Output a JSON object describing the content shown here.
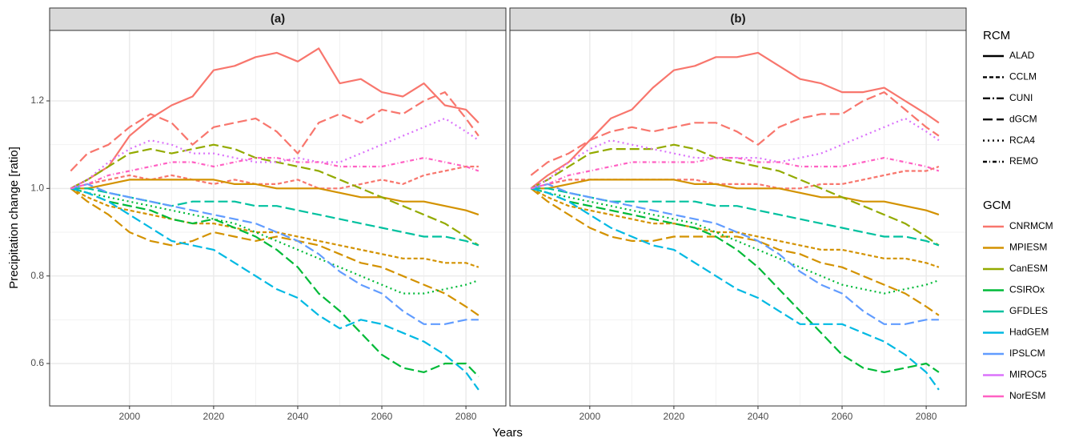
{
  "y_label": "Precipitation change [ratio]",
  "x_label": "Years",
  "legend": {
    "rcm": {
      "title": "RCM",
      "items": [
        {
          "name": "ALAD",
          "dash": "none"
        },
        {
          "name": "CCLM",
          "dash": "5,3"
        },
        {
          "name": "CUNI",
          "dash": "9,3,2,3"
        },
        {
          "name": "dGCM",
          "dash": "12,5"
        },
        {
          "name": "RCA4",
          "dash": "2,4"
        },
        {
          "name": "REMO",
          "dash": "5,3,1,3"
        }
      ]
    },
    "gcm": {
      "title": "GCM",
      "items": [
        {
          "name": "CNRMCM",
          "color": "#f8766d"
        },
        {
          "name": "MPIESM",
          "color": "#d39200"
        },
        {
          "name": "CanESM",
          "color": "#93aa00"
        },
        {
          "name": "CSIROx",
          "color": "#00ba38"
        },
        {
          "name": "GFDLES",
          "color": "#00c19f"
        },
        {
          "name": "HadGEM",
          "color": "#00b9e3"
        },
        {
          "name": "IPSLCM",
          "color": "#619cff"
        },
        {
          "name": "MIROC5",
          "color": "#db72fb"
        },
        {
          "name": "NorESM",
          "color": "#ff61c3"
        }
      ]
    }
  },
  "chart_data": [
    {
      "type": "line",
      "title": "(a)",
      "x": [
        1986,
        1990,
        1995,
        2000,
        2005,
        2010,
        2015,
        2020,
        2025,
        2030,
        2035,
        2040,
        2045,
        2050,
        2055,
        2060,
        2065,
        2070,
        2075,
        2080,
        2083
      ],
      "xlim": [
        1981,
        2089.5
      ],
      "ylim": [
        0.503,
        1.361
      ],
      "xticks": [
        2000,
        2020,
        2040,
        2060,
        2080
      ],
      "yticks": [
        0.6,
        0.8,
        {
          "value": 1,
          "label": "1.0"
        },
        1.2
      ],
      "grid": true,
      "series": [
        {
          "gcm": "CNRMCM",
          "rcm": "ALAD",
          "color": "#f8766d",
          "values": [
            1.0,
            1.02,
            1.05,
            1.12,
            1.16,
            1.19,
            1.21,
            1.27,
            1.28,
            1.3,
            1.31,
            1.29,
            1.32,
            1.24,
            1.25,
            1.22,
            1.21,
            1.24,
            1.19,
            1.18,
            1.15
          ]
        },
        {
          "gcm": "CNRMCM",
          "rcm": "dGCM",
          "color": "#f8766d",
          "values": [
            1.04,
            1.08,
            1.1,
            1.14,
            1.17,
            1.15,
            1.1,
            1.14,
            1.15,
            1.16,
            1.13,
            1.08,
            1.15,
            1.17,
            1.15,
            1.18,
            1.17,
            1.2,
            1.22,
            1.16,
            1.12
          ]
        },
        {
          "gcm": "CNRMCM",
          "rcm": "CCLM",
          "color": "#f8766d",
          "values": [
            1.0,
            1.01,
            1.02,
            1.03,
            1.02,
            1.03,
            1.02,
            1.01,
            1.02,
            1.01,
            1.01,
            1.02,
            1.0,
            1.0,
            1.01,
            1.02,
            1.01,
            1.03,
            1.04,
            1.05,
            1.05
          ]
        },
        {
          "gcm": "MPIESM",
          "rcm": "dGCM",
          "color": "#d39200",
          "values": [
            1.0,
            0.97,
            0.94,
            0.9,
            0.88,
            0.87,
            0.88,
            0.9,
            0.89,
            0.88,
            0.89,
            0.88,
            0.87,
            0.85,
            0.83,
            0.82,
            0.8,
            0.78,
            0.76,
            0.73,
            0.71
          ]
        },
        {
          "gcm": "MPIESM",
          "rcm": "CCLM",
          "color": "#d39200",
          "values": [
            1.0,
            0.98,
            0.96,
            0.95,
            0.94,
            0.93,
            0.92,
            0.92,
            0.91,
            0.9,
            0.9,
            0.89,
            0.88,
            0.87,
            0.86,
            0.85,
            0.84,
            0.84,
            0.83,
            0.83,
            0.82
          ]
        },
        {
          "gcm": "MPIESM",
          "rcm": "ALAD",
          "color": "#d39200",
          "values": [
            1.0,
            1.0,
            1.01,
            1.02,
            1.02,
            1.02,
            1.02,
            1.02,
            1.01,
            1.01,
            1.0,
            1.0,
            1.0,
            0.99,
            0.98,
            0.98,
            0.97,
            0.97,
            0.96,
            0.95,
            0.94
          ]
        },
        {
          "gcm": "CanESM",
          "rcm": "dGCM",
          "color": "#93aa00",
          "values": [
            1.0,
            1.02,
            1.05,
            1.08,
            1.09,
            1.08,
            1.09,
            1.1,
            1.09,
            1.07,
            1.06,
            1.05,
            1.04,
            1.02,
            1.0,
            0.98,
            0.96,
            0.94,
            0.92,
            0.89,
            0.87
          ]
        },
        {
          "gcm": "CSIROx",
          "rcm": "dGCM",
          "color": "#00ba38",
          "values": [
            1.0,
            0.99,
            0.97,
            0.96,
            0.95,
            0.93,
            0.92,
            0.93,
            0.91,
            0.89,
            0.86,
            0.82,
            0.76,
            0.72,
            0.67,
            0.62,
            0.59,
            0.58,
            0.6,
            0.6,
            0.57
          ]
        },
        {
          "gcm": "CSIROx",
          "rcm": "RCA4",
          "color": "#00ba38",
          "values": [
            1.0,
            0.99,
            0.98,
            0.97,
            0.96,
            0.95,
            0.94,
            0.93,
            0.92,
            0.9,
            0.88,
            0.86,
            0.84,
            0.82,
            0.8,
            0.78,
            0.76,
            0.76,
            0.77,
            0.78,
            0.79
          ]
        },
        {
          "gcm": "GFDLES",
          "rcm": "dGCM",
          "color": "#00c19f",
          "values": [
            1.0,
            1.0,
            0.99,
            0.98,
            0.97,
            0.96,
            0.97,
            0.97,
            0.97,
            0.96,
            0.96,
            0.95,
            0.94,
            0.93,
            0.92,
            0.91,
            0.9,
            0.89,
            0.89,
            0.88,
            0.87
          ]
        },
        {
          "gcm": "HadGEM",
          "rcm": "dGCM",
          "color": "#00b9e3",
          "values": [
            1.0,
            0.99,
            0.97,
            0.94,
            0.91,
            0.88,
            0.87,
            0.86,
            0.83,
            0.8,
            0.77,
            0.75,
            0.71,
            0.68,
            0.7,
            0.69,
            0.67,
            0.65,
            0.62,
            0.58,
            0.54
          ]
        },
        {
          "gcm": "IPSLCM",
          "rcm": "dGCM",
          "color": "#619cff",
          "values": [
            1.0,
            1.01,
            0.99,
            0.98,
            0.97,
            0.96,
            0.95,
            0.94,
            0.93,
            0.92,
            0.9,
            0.88,
            0.85,
            0.81,
            0.78,
            0.76,
            0.72,
            0.69,
            0.69,
            0.7,
            0.7
          ]
        },
        {
          "gcm": "MIROC5",
          "rcm": "RCA4",
          "color": "#db72fb",
          "values": [
            1.0,
            1.02,
            1.06,
            1.09,
            1.11,
            1.1,
            1.08,
            1.08,
            1.07,
            1.06,
            1.06,
            1.07,
            1.06,
            1.06,
            1.08,
            1.1,
            1.12,
            1.14,
            1.16,
            1.13,
            1.11
          ]
        },
        {
          "gcm": "NorESM",
          "rcm": "REMO",
          "color": "#ff61c3",
          "values": [
            1.0,
            1.01,
            1.03,
            1.04,
            1.05,
            1.06,
            1.06,
            1.05,
            1.06,
            1.07,
            1.07,
            1.06,
            1.06,
            1.05,
            1.05,
            1.05,
            1.06,
            1.07,
            1.06,
            1.05,
            1.04
          ]
        }
      ]
    },
    {
      "type": "line",
      "title": "(b)",
      "x": [
        1986,
        1990,
        1995,
        2000,
        2005,
        2010,
        2015,
        2020,
        2025,
        2030,
        2035,
        2040,
        2045,
        2050,
        2055,
        2060,
        2065,
        2070,
        2075,
        2080,
        2083
      ],
      "xlim": [
        1981,
        2089.5
      ],
      "ylim": [
        0.503,
        1.361
      ],
      "xticks": [
        2000,
        2020,
        2040,
        2060,
        2080
      ],
      "yticks": [
        0.6,
        0.8,
        {
          "value": 1,
          "label": "1.0"
        },
        1.2
      ],
      "grid": true,
      "series": [
        {
          "gcm": "CNRMCM",
          "rcm": "ALAD",
          "color": "#f8766d",
          "values": [
            1.0,
            1.03,
            1.06,
            1.11,
            1.16,
            1.18,
            1.23,
            1.27,
            1.28,
            1.3,
            1.3,
            1.31,
            1.28,
            1.25,
            1.24,
            1.22,
            1.22,
            1.23,
            1.2,
            1.17,
            1.15
          ]
        },
        {
          "gcm": "CNRMCM",
          "rcm": "dGCM",
          "color": "#f8766d",
          "values": [
            1.03,
            1.06,
            1.08,
            1.11,
            1.13,
            1.14,
            1.13,
            1.14,
            1.15,
            1.15,
            1.13,
            1.1,
            1.14,
            1.16,
            1.17,
            1.17,
            1.2,
            1.22,
            1.18,
            1.14,
            1.12
          ]
        },
        {
          "gcm": "CNRMCM",
          "rcm": "CCLM",
          "color": "#f8766d",
          "values": [
            1.0,
            1.01,
            1.02,
            1.02,
            1.02,
            1.02,
            1.02,
            1.02,
            1.02,
            1.01,
            1.01,
            1.01,
            1.0,
            1.0,
            1.01,
            1.01,
            1.02,
            1.03,
            1.04,
            1.04,
            1.05
          ]
        },
        {
          "gcm": "MPIESM",
          "rcm": "dGCM",
          "color": "#d39200",
          "values": [
            1.0,
            0.97,
            0.94,
            0.91,
            0.89,
            0.88,
            0.88,
            0.89,
            0.89,
            0.89,
            0.89,
            0.88,
            0.86,
            0.85,
            0.83,
            0.82,
            0.8,
            0.78,
            0.76,
            0.73,
            0.71
          ]
        },
        {
          "gcm": "MPIESM",
          "rcm": "CCLM",
          "color": "#d39200",
          "values": [
            1.0,
            0.98,
            0.96,
            0.95,
            0.94,
            0.93,
            0.92,
            0.92,
            0.91,
            0.9,
            0.9,
            0.89,
            0.88,
            0.87,
            0.86,
            0.86,
            0.85,
            0.84,
            0.84,
            0.83,
            0.82
          ]
        },
        {
          "gcm": "MPIESM",
          "rcm": "ALAD",
          "color": "#d39200",
          "values": [
            1.0,
            1.0,
            1.01,
            1.02,
            1.02,
            1.02,
            1.02,
            1.02,
            1.01,
            1.01,
            1.0,
            1.0,
            1.0,
            0.99,
            0.98,
            0.98,
            0.97,
            0.97,
            0.96,
            0.95,
            0.94
          ]
        },
        {
          "gcm": "CanESM",
          "rcm": "dGCM",
          "color": "#93aa00",
          "values": [
            1.0,
            1.02,
            1.05,
            1.08,
            1.09,
            1.09,
            1.09,
            1.1,
            1.09,
            1.07,
            1.06,
            1.05,
            1.04,
            1.02,
            1.0,
            0.98,
            0.96,
            0.94,
            0.92,
            0.89,
            0.87
          ]
        },
        {
          "gcm": "CSIROx",
          "rcm": "dGCM",
          "color": "#00ba38",
          "values": [
            1.0,
            0.99,
            0.97,
            0.96,
            0.95,
            0.94,
            0.93,
            0.92,
            0.91,
            0.89,
            0.86,
            0.82,
            0.77,
            0.72,
            0.67,
            0.62,
            0.59,
            0.58,
            0.59,
            0.6,
            0.58
          ]
        },
        {
          "gcm": "CSIROx",
          "rcm": "RCA4",
          "color": "#00ba38",
          "values": [
            1.0,
            0.99,
            0.98,
            0.97,
            0.96,
            0.95,
            0.94,
            0.93,
            0.92,
            0.9,
            0.88,
            0.86,
            0.84,
            0.82,
            0.8,
            0.78,
            0.77,
            0.76,
            0.77,
            0.78,
            0.79
          ]
        },
        {
          "gcm": "GFDLES",
          "rcm": "dGCM",
          "color": "#00c19f",
          "values": [
            1.0,
            1.0,
            0.99,
            0.98,
            0.97,
            0.97,
            0.97,
            0.97,
            0.97,
            0.96,
            0.96,
            0.95,
            0.94,
            0.93,
            0.92,
            0.91,
            0.9,
            0.89,
            0.89,
            0.88,
            0.87
          ]
        },
        {
          "gcm": "HadGEM",
          "rcm": "dGCM",
          "color": "#00b9e3",
          "values": [
            1.0,
            0.99,
            0.97,
            0.94,
            0.91,
            0.89,
            0.87,
            0.86,
            0.83,
            0.8,
            0.77,
            0.75,
            0.72,
            0.69,
            0.69,
            0.69,
            0.67,
            0.65,
            0.62,
            0.58,
            0.54
          ]
        },
        {
          "gcm": "IPSLCM",
          "rcm": "dGCM",
          "color": "#619cff",
          "values": [
            1.0,
            1.01,
            0.99,
            0.98,
            0.97,
            0.96,
            0.95,
            0.94,
            0.93,
            0.92,
            0.9,
            0.88,
            0.85,
            0.81,
            0.78,
            0.76,
            0.72,
            0.69,
            0.69,
            0.7,
            0.7
          ]
        },
        {
          "gcm": "MIROC5",
          "rcm": "RCA4",
          "color": "#db72fb",
          "values": [
            1.0,
            1.02,
            1.06,
            1.09,
            1.11,
            1.1,
            1.09,
            1.08,
            1.07,
            1.07,
            1.07,
            1.07,
            1.06,
            1.07,
            1.08,
            1.1,
            1.12,
            1.14,
            1.16,
            1.13,
            1.11
          ]
        },
        {
          "gcm": "NorESM",
          "rcm": "REMO",
          "color": "#ff61c3",
          "values": [
            1.0,
            1.01,
            1.03,
            1.04,
            1.05,
            1.06,
            1.06,
            1.06,
            1.06,
            1.07,
            1.07,
            1.06,
            1.06,
            1.05,
            1.05,
            1.05,
            1.06,
            1.07,
            1.06,
            1.05,
            1.04
          ]
        }
      ]
    }
  ]
}
